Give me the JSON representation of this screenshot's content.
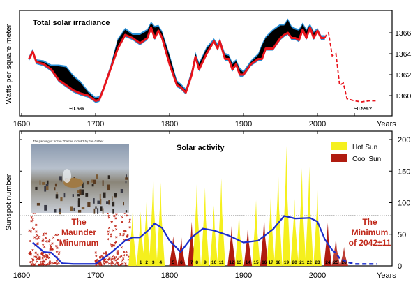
{
  "chart_data": [
    {
      "type": "line",
      "title": "Total solar irradiance",
      "xlabel": "Years",
      "ylabel": "Watts per square meter",
      "xlim": [
        1600,
        2090
      ],
      "ylim": [
        1358.3,
        1368.3
      ],
      "xticks": [
        "1600",
        "1700",
        "1800",
        "1900",
        "2000"
      ],
      "yticks": [
        "1360",
        "1362",
        "1364",
        "1366"
      ],
      "grid": false,
      "colors": {
        "reconstruction": "#e8141c",
        "band": "#000000",
        "uncertainty": "#2a8fd6",
        "forecast": "#e8141c"
      },
      "x": [
        1610,
        1615,
        1620,
        1630,
        1640,
        1650,
        1660,
        1670,
        1680,
        1690,
        1700,
        1705,
        1710,
        1720,
        1730,
        1740,
        1750,
        1760,
        1770,
        1775,
        1780,
        1785,
        1790,
        1800,
        1810,
        1815,
        1822,
        1830,
        1835,
        1840,
        1850,
        1860,
        1865,
        1868,
        1875,
        1880,
        1885,
        1890,
        1895,
        1900,
        1910,
        1920,
        1925,
        1930,
        1940,
        1950,
        1955,
        1960,
        1965,
        1970,
        1975,
        1980,
        1985,
        1990,
        1995,
        2000,
        2005,
        2010
      ],
      "values": [
        1363.5,
        1364.2,
        1363.2,
        1363,
        1362.5,
        1361.5,
        1361,
        1360.5,
        1360.2,
        1360,
        1359.5,
        1359.6,
        1360.5,
        1362.5,
        1364.5,
        1365.8,
        1365.5,
        1365,
        1365.5,
        1366.5,
        1365.5,
        1366.2,
        1365.5,
        1363,
        1361,
        1360.8,
        1360.3,
        1362,
        1363.7,
        1362.5,
        1364,
        1365.2,
        1364.5,
        1365.2,
        1363.5,
        1363.5,
        1362.5,
        1363,
        1362,
        1362,
        1363,
        1363.5,
        1363.5,
        1364.5,
        1364.5,
        1365.5,
        1365.8,
        1366,
        1365.5,
        1365.5,
        1365.3,
        1366.3,
        1365.5,
        1366.5,
        1365.5,
        1366.2,
        1365.5,
        1365.5
      ],
      "upper": [
        1363.6,
        1364.3,
        1363.3,
        1363.2,
        1362.8,
        1362.8,
        1362.7,
        1361.8,
        1361.2,
        1360.3,
        1359.7,
        1359.8,
        1360.6,
        1362.7,
        1365.3,
        1366.3,
        1365.8,
        1365.8,
        1366.2,
        1366.9,
        1366.5,
        1366.6,
        1366,
        1363.8,
        1361.3,
        1361,
        1360.5,
        1362.3,
        1364,
        1363,
        1364.5,
        1365.3,
        1364.8,
        1365.3,
        1363.9,
        1363.8,
        1363,
        1363.3,
        1362.5,
        1362.2,
        1363.2,
        1363.9,
        1364.8,
        1365.5,
        1366.2,
        1366.7,
        1366.7,
        1367.2,
        1366.5,
        1366.3,
        1366.2,
        1366.8,
        1366.2,
        1366.7,
        1366,
        1366.3,
        1365.6,
        1365.6
      ],
      "forecast": {
        "x": [
          2010,
          2012,
          2015,
          2020,
          2025,
          2030,
          2035,
          2040,
          2050,
          2060,
          2070,
          2080
        ],
        "values": [
          1365.5,
          1365.8,
          1366,
          1363.8,
          1364,
          1361,
          1361.2,
          1359.7,
          1359.5,
          1359.4,
          1359.5,
          1359.5
        ]
      },
      "annotations": [
        "~0.5%",
        "~0.5%?"
      ]
    },
    {
      "type": "area",
      "title": "Solar activity",
      "xlabel": "Years",
      "ylabel": "Sunspot number",
      "xlim": [
        1600,
        2090
      ],
      "ylim": [
        0,
        210
      ],
      "xticks": [
        "1600",
        "1700",
        "1800",
        "1900",
        "2000"
      ],
      "yticks": [
        "0",
        "50",
        "100",
        "150",
        "200"
      ],
      "reference_line": 80,
      "legend": {
        "position": "top-right",
        "items": [
          {
            "label": "Hot Sun",
            "color": "#f5f01e"
          },
          {
            "label": "Cool Sun",
            "color": "#b01c10"
          }
        ]
      },
      "cycles": [
        {
          "label": "",
          "year": 1750,
          "peak": 85,
          "type": "hot"
        },
        {
          "label": "1",
          "year": 1761,
          "peak": 86,
          "type": "hot"
        },
        {
          "label": "2",
          "year": 1769,
          "peak": 105,
          "type": "hot"
        },
        {
          "label": "3",
          "year": 1778,
          "peak": 150,
          "type": "hot"
        },
        {
          "label": "4",
          "year": 1788,
          "peak": 132,
          "type": "hot"
        },
        {
          "label": "5",
          "year": 1805,
          "peak": 47,
          "type": "cool"
        },
        {
          "label": "6",
          "year": 1816,
          "peak": 46,
          "type": "cool"
        },
        {
          "label": "7",
          "year": 1830,
          "peak": 70,
          "type": "cool"
        },
        {
          "label": "8",
          "year": 1837,
          "peak": 137,
          "type": "hot"
        },
        {
          "label": "9",
          "year": 1848,
          "peak": 124,
          "type": "hot"
        },
        {
          "label": "10",
          "year": 1860,
          "peak": 96,
          "type": "hot"
        },
        {
          "label": "11",
          "year": 1870,
          "peak": 139,
          "type": "hot"
        },
        {
          "label": "12",
          "year": 1884,
          "peak": 64,
          "type": "cool"
        },
        {
          "label": "13",
          "year": 1894,
          "peak": 85,
          "type": "hot"
        },
        {
          "label": "14",
          "year": 1906,
          "peak": 63,
          "type": "cool"
        },
        {
          "label": "15",
          "year": 1917,
          "peak": 104,
          "type": "hot"
        },
        {
          "label": "16",
          "year": 1928,
          "peak": 78,
          "type": "cool"
        },
        {
          "label": "17",
          "year": 1937,
          "peak": 114,
          "type": "hot"
        },
        {
          "label": "18",
          "year": 1947,
          "peak": 151,
          "type": "hot"
        },
        {
          "label": "19",
          "year": 1958,
          "peak": 190,
          "type": "hot"
        },
        {
          "label": "20",
          "year": 1969,
          "peak": 106,
          "type": "hot"
        },
        {
          "label": "21",
          "year": 1979,
          "peak": 155,
          "type": "hot"
        },
        {
          "label": "22",
          "year": 1989,
          "peak": 157,
          "type": "hot"
        },
        {
          "label": "23",
          "year": 2000,
          "peak": 120,
          "type": "hot"
        },
        {
          "label": "24",
          "year": 2014,
          "peak": 68,
          "type": "cool"
        },
        {
          "label": "25",
          "year": 2025,
          "peak": 45,
          "type": "cool"
        },
        {
          "label": "26",
          "year": 2036,
          "peak": 30,
          "type": "cool"
        }
      ],
      "trend": {
        "color": "#1a2ccc",
        "x": [
          1615,
          1630,
          1640,
          1655,
          1670,
          1700,
          1720,
          1740,
          1750,
          1760,
          1770,
          1780,
          1790,
          1800,
          1815,
          1830,
          1845,
          1860,
          1880,
          1900,
          1920,
          1940,
          1955,
          1970,
          1990,
          2000,
          2010,
          2020
        ],
        "values": [
          37,
          22,
          21,
          4,
          3,
          3,
          20,
          40,
          45,
          45,
          55,
          67,
          60,
          40,
          22,
          45,
          59,
          56,
          48,
          37,
          40,
          58,
          79,
          75,
          76,
          70,
          42,
          25
        ]
      },
      "trend_forecast": {
        "x": [
          2020,
          2025,
          2030,
          2040,
          2050,
          2060,
          2080
        ],
        "values": [
          25,
          20,
          12,
          6,
          3,
          3,
          3
        ]
      },
      "annotations": {
        "maunder": [
          "The",
          "Maunder",
          "Minumum"
        ],
        "future": [
          "The",
          "Minimum",
          "of 2042±11"
        ],
        "painting_caption": "The painting of frozen Thames in 1683 by Jan Griffier"
      }
    }
  ]
}
